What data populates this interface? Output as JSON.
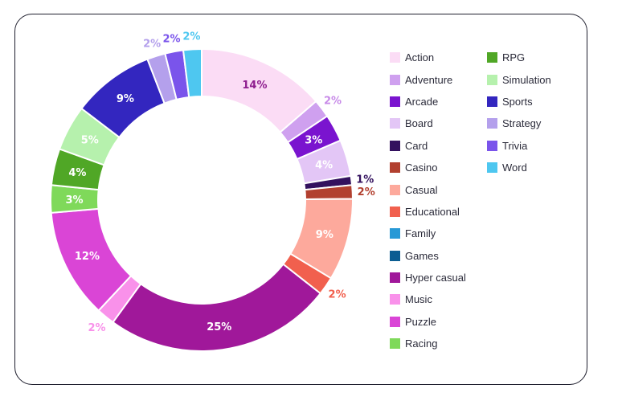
{
  "chart_data": {
    "type": "pie",
    "donut": true,
    "slices": [
      {
        "label": "Action",
        "value": 14,
        "color": "#fbdcf5",
        "text": "14%",
        "inside": true,
        "text_color": "#8e1d8e"
      },
      {
        "label": "Adventure",
        "value": 2,
        "color": "#cfa0ef",
        "text": "2%",
        "inside": false,
        "text_color": "#c88be8"
      },
      {
        "label": "Arcade",
        "value": 3,
        "color": "#7a14cf",
        "text": "3%",
        "inside": true,
        "text_color": "#ffffff"
      },
      {
        "label": "Board",
        "value": 4,
        "color": "#e3c6f6",
        "text": "4%",
        "inside": true,
        "text_color": "#ffffff"
      },
      {
        "label": "Card",
        "value": 1,
        "color": "#33115e",
        "text": "1%",
        "inside": false,
        "text_color": "#33115e"
      },
      {
        "label": "Casino",
        "value": 1.5,
        "color": "#b2402f",
        "text": "2%",
        "inside": false,
        "text_color": "#b2402f"
      },
      {
        "label": "Casual",
        "value": 9,
        "color": "#fda99c",
        "text": "9%",
        "inside": true,
        "text_color": "#ffffff"
      },
      {
        "label": "Educational",
        "value": 2,
        "color": "#f1604e",
        "text": "2%",
        "inside": false,
        "text_color": "#f1604e"
      },
      {
        "label": "Hyper casual",
        "value": 25,
        "color": "#a0189a",
        "text": "25%",
        "inside": true,
        "text_color": "#ffffff"
      },
      {
        "label": "Music",
        "value": 2,
        "color": "#f991ea",
        "text": "2%",
        "inside": false,
        "text_color": "#f991ea"
      },
      {
        "label": "Puzzle",
        "value": 12,
        "color": "#da45d6",
        "text": "12%",
        "inside": true,
        "text_color": "#ffffff"
      },
      {
        "label": "Racing",
        "value": 3,
        "color": "#7fd95a",
        "text": "3%",
        "inside": true,
        "text_color": "#ffffff"
      },
      {
        "label": "RPG",
        "value": 4,
        "color": "#50a726",
        "text": "4%",
        "inside": true,
        "text_color": "#ffffff"
      },
      {
        "label": "Simulation",
        "value": 5,
        "color": "#b6f1ad",
        "text": "5%",
        "inside": true,
        "text_color": "#ffffff"
      },
      {
        "label": "Sports",
        "value": 9,
        "color": "#3326bf",
        "text": "9%",
        "inside": true,
        "text_color": "#ffffff"
      },
      {
        "label": "Strategy",
        "value": 2,
        "color": "#b4a0ec",
        "text": "2%",
        "inside": false,
        "text_color": "#b4a0ec"
      },
      {
        "label": "Trivia",
        "value": 2,
        "color": "#7a54eb",
        "text": "2%",
        "inside": false,
        "text_color": "#7a54eb"
      },
      {
        "label": "Word",
        "value": 2,
        "color": "#4ec7f0",
        "text": "2%",
        "inside": false,
        "text_color": "#4ec7f0"
      }
    ],
    "legend_placement": "right",
    "legend": {
      "left_column": [
        {
          "label": "Action",
          "color": "#fbdcf5"
        },
        {
          "label": "Adventure",
          "color": "#cfa0ef"
        },
        {
          "label": "Arcade",
          "color": "#7a14cf"
        },
        {
          "label": "Board",
          "color": "#e3c6f6"
        },
        {
          "label": "Card",
          "color": "#33115e"
        },
        {
          "label": "Casino",
          "color": "#b2402f"
        },
        {
          "label": "Casual",
          "color": "#fda99c"
        },
        {
          "label": "Educational",
          "color": "#f1604e"
        },
        {
          "label": "Family",
          "color": "#2799d6"
        },
        {
          "label": "Games",
          "color": "#0c5d92"
        },
        {
          "label": "Hyper casual",
          "color": "#a0189a"
        },
        {
          "label": "Music",
          "color": "#f991ea"
        },
        {
          "label": "Puzzle",
          "color": "#da45d6"
        },
        {
          "label": "Racing",
          "color": "#7fd95a"
        }
      ],
      "right_column": [
        {
          "label": "RPG",
          "color": "#50a726"
        },
        {
          "label": "Simulation",
          "color": "#b6f1ad"
        },
        {
          "label": "Sports",
          "color": "#3326bf"
        },
        {
          "label": "Strategy",
          "color": "#b4a0ec"
        },
        {
          "label": "Trivia",
          "color": "#7a54eb"
        },
        {
          "label": "Word",
          "color": "#4ec7f0"
        }
      ]
    }
  }
}
